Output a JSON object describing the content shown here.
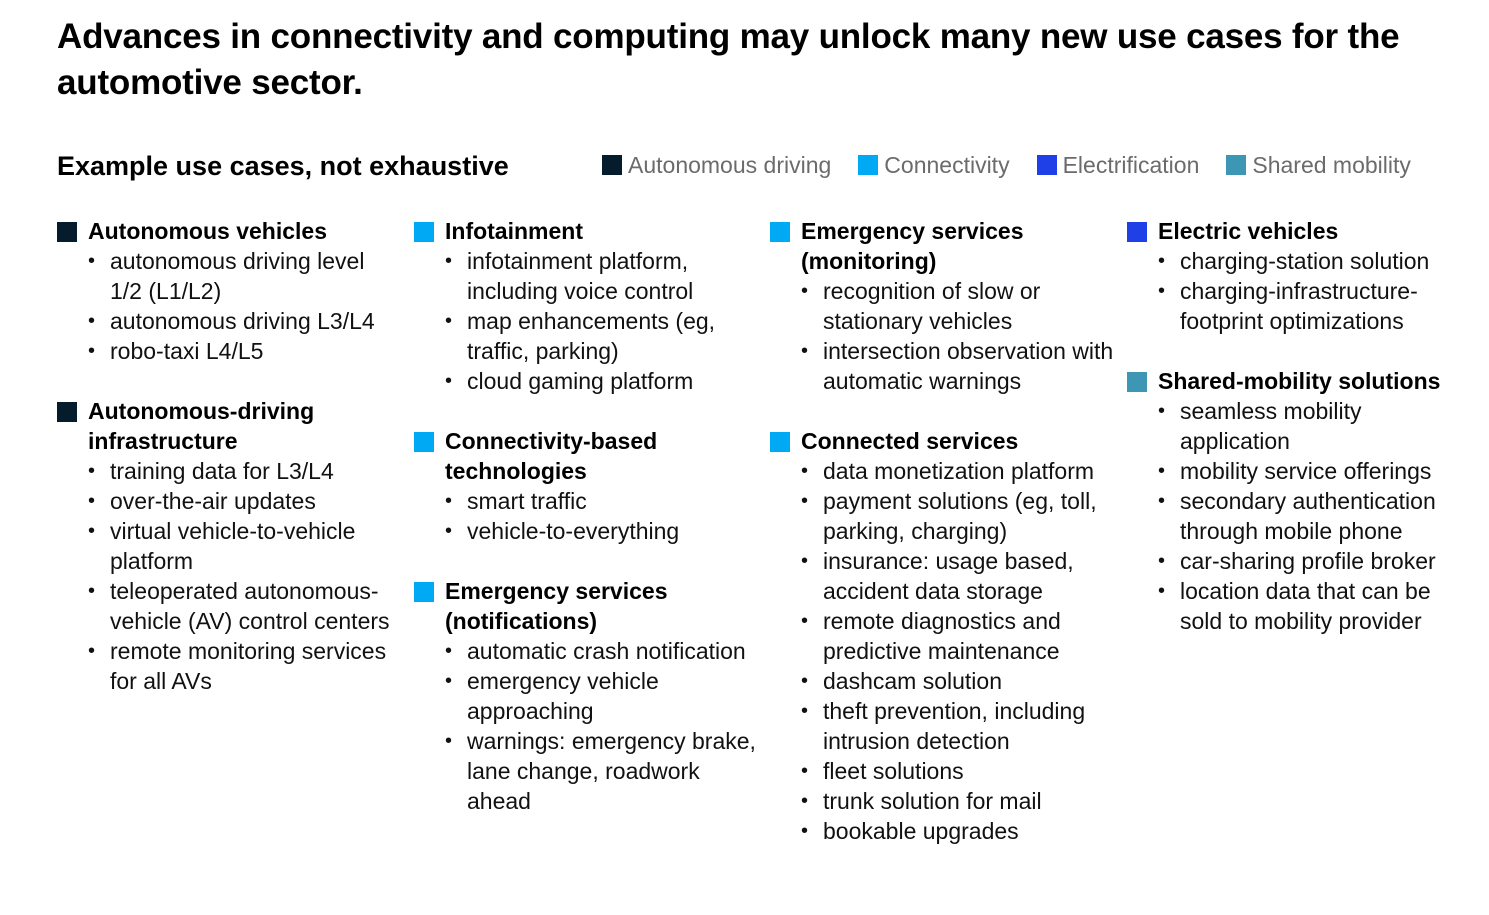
{
  "header": {
    "title": "Advances in connectivity and computing may unlock many new use cases for the automotive sector.",
    "subtitle": "Example use cases, not exhaustive"
  },
  "legend": [
    {
      "label": "Autonomous driving",
      "color": "#051c2c"
    },
    {
      "label": "Connectivity",
      "color": "#00a9f4"
    },
    {
      "label": "Electrification",
      "color": "#1f40e6"
    },
    {
      "label": "Shared mobility",
      "color": "#3c96b4"
    }
  ],
  "columns": [
    {
      "groups": [
        {
          "title": "Autonomous vehicles",
          "category": "Autonomous driving",
          "color": "#051c2c",
          "items": [
            "autonomous driving level 1/2 (L1/L2)",
            "autonomous driving L3/L4",
            "robo-taxi L4/L5"
          ]
        },
        {
          "title": "Autonomous-driving infrastructure",
          "category": "Autonomous driving",
          "color": "#051c2c",
          "items": [
            "training data for L3/L4",
            "over-the-air updates",
            "virtual vehicle-to-vehicle platform",
            "teleoperated autonomous-vehicle (AV) control centers",
            "remote monitoring services for all AVs"
          ]
        }
      ]
    },
    {
      "groups": [
        {
          "title": "Infotainment",
          "category": "Connectivity",
          "color": "#00a9f4",
          "items": [
            "infotainment platform, including voice control",
            "map enhancements (eg, traffic, parking)",
            "cloud gaming platform"
          ]
        },
        {
          "title": "Connectivity-based technologies",
          "category": "Connectivity",
          "color": "#00a9f4",
          "items": [
            "smart traffic",
            "vehicle-to-everything"
          ]
        },
        {
          "title": "Emergency services (notifications)",
          "category": "Connectivity",
          "color": "#00a9f4",
          "items": [
            "automatic crash notification",
            "emergency vehicle approaching",
            "warnings: emergency brake, lane change, roadwork ahead"
          ]
        }
      ]
    },
    {
      "groups": [
        {
          "title": "Emergency services (monitoring)",
          "category": "Connectivity",
          "color": "#00a9f4",
          "items": [
            "recognition of slow or stationary vehicles",
            "intersection observation with automatic warnings"
          ]
        },
        {
          "title": "Connected services",
          "category": "Connectivity",
          "color": "#00a9f4",
          "items": [
            "data monetization platform",
            "payment solutions (eg, toll, parking, charging)",
            "insurance: usage based, accident data storage",
            "remote diagnostics and predictive maintenance",
            "dashcam solution",
            "theft prevention, including intrusion detection",
            "fleet solutions",
            "trunk solution for mail",
            "bookable upgrades"
          ]
        }
      ]
    },
    {
      "groups": [
        {
          "title": "Electric vehicles",
          "category": "Electrification",
          "color": "#1f40e6",
          "items": [
            "charging-station solution",
            "charging-infrastructure-footprint optimizations"
          ]
        },
        {
          "title": "Shared-mobility solutions",
          "category": "Shared mobility",
          "color": "#3c96b4",
          "items": [
            "seamless mobility application",
            "mobility service offerings",
            "secondary authentication through mobile phone",
            "car-sharing profile broker",
            "location data that can be sold to mobility provider"
          ]
        }
      ]
    }
  ]
}
